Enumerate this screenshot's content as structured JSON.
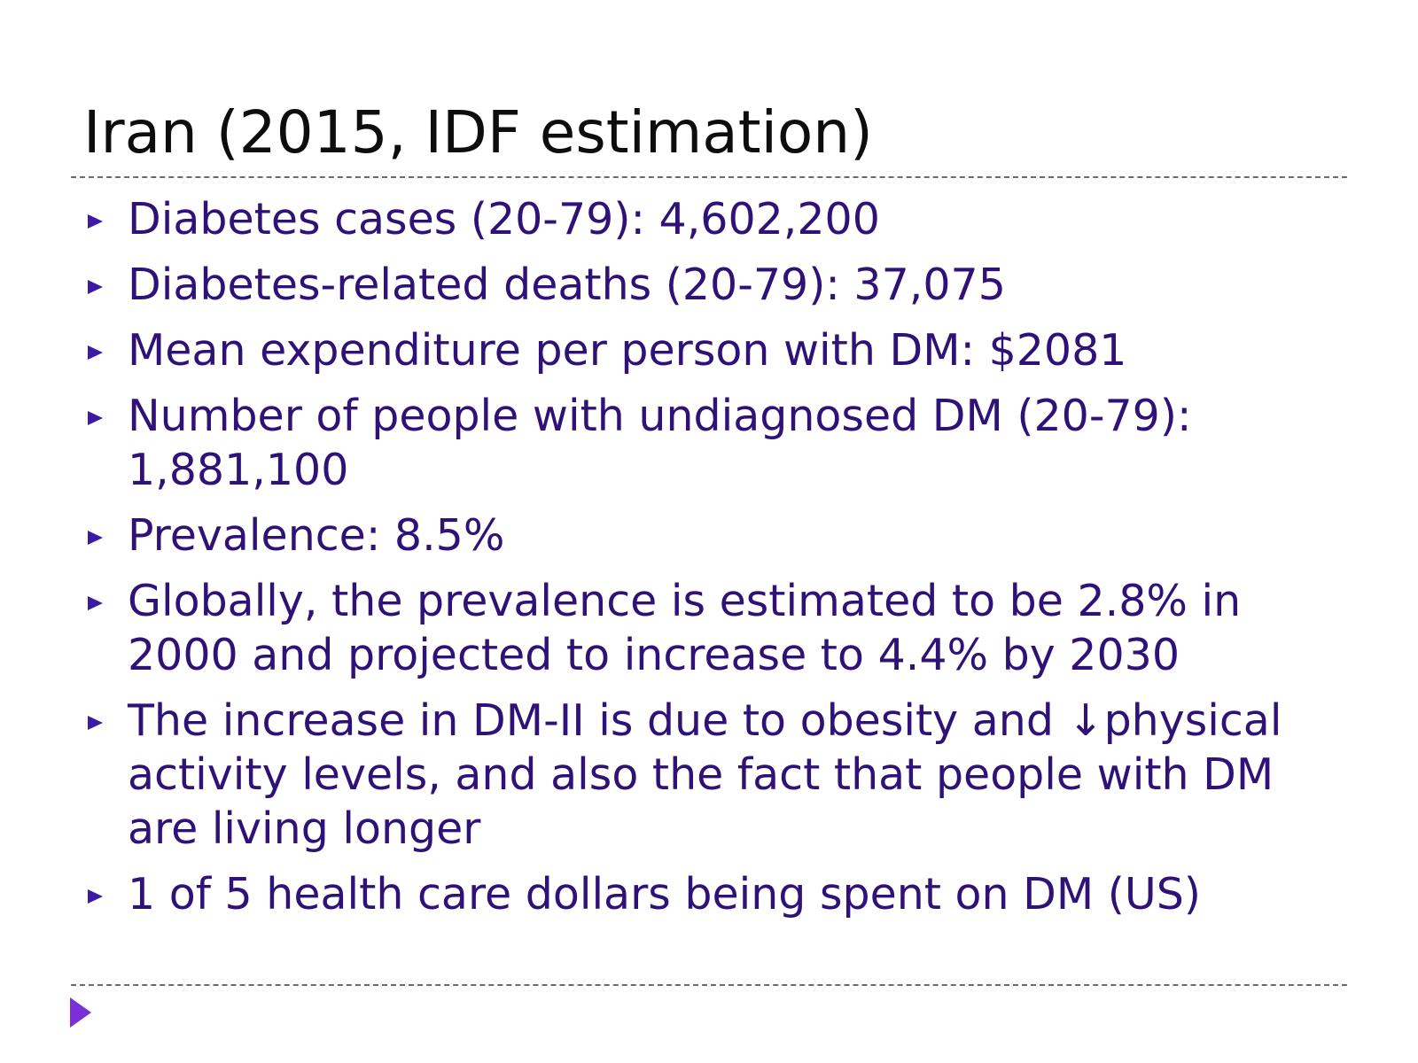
{
  "slide": {
    "title": "Iran (2015, IDF estimation)",
    "bullets": [
      "Diabetes cases (20-79): 4,602,200",
      "Diabetes-related deaths (20-79): 37,075",
      "Mean expenditure per person with DM: $2081",
      "Number of people with undiagnosed DM (20-79): 1,881,100",
      "Prevalence:  8.5%",
      "Globally, the prevalence is estimated to be 2.8% in 2000 and projected to increase to 4.4% by 2030",
      "The increase in DM-II is due to obesity and ↓physical activity levels, and also the fact that people with DM are living longer",
      "1 of 5 health care dollars being spent on DM (US)"
    ]
  },
  "icons": {
    "bullet_marker": "triangle-bullet-icon",
    "corner": "play-triangle-icon"
  },
  "colors": {
    "title": "#0d0d0d",
    "bullet_text": "#2e1277",
    "bullet_marker": "#3b1aa6",
    "corner_arrow": "#7b2fd6",
    "rule": "#6b6b6b",
    "background": "#ffffff"
  }
}
